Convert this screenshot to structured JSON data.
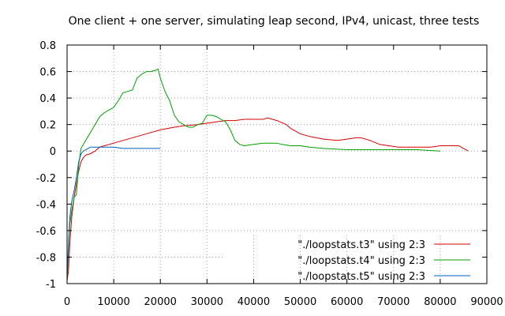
{
  "chart_data": {
    "type": "line",
    "title": "One client + one server, simulating leap second, IPv4, unicast, three tests",
    "xlabel": "",
    "ylabel": "",
    "xlim": [
      0,
      90000
    ],
    "ylim": [
      -1,
      0.8
    ],
    "xticks": [
      0,
      10000,
      20000,
      30000,
      40000,
      50000,
      60000,
      70000,
      80000,
      90000
    ],
    "xtick_labels": [
      "0",
      "10000",
      "20000",
      "30000",
      "40000",
      "50000",
      "60000",
      "70000",
      "80000",
      "90000"
    ],
    "yticks": [
      -1,
      -0.8,
      -0.6,
      -0.4,
      -0.2,
      0,
      0.2,
      0.4,
      0.6,
      0.8
    ],
    "ytick_labels": [
      "-1",
      "-0.8",
      "-0.6",
      "-0.4",
      "-0.2",
      "0",
      "0.2",
      "0.4",
      "0.6",
      "0.8"
    ],
    "grid": true,
    "legend_position": "bottom-right",
    "series": [
      {
        "name": "\"./loopstats.t3\" using 2:3",
        "color": "#d40000",
        "x": [
          0,
          300,
          600,
          1000,
          1500,
          2000,
          2500,
          3000,
          3500,
          4000,
          5000,
          6000,
          7000,
          8000,
          10000,
          12000,
          15000,
          18000,
          20000,
          23000,
          25000,
          28000,
          30000,
          32000,
          34000,
          36000,
          38000,
          40000,
          42000,
          43000,
          45000,
          47000,
          48000,
          50000,
          52000,
          55000,
          58000,
          60000,
          62000,
          63000,
          65000,
          67000,
          69000,
          71000,
          73000,
          75000,
          78000,
          80000,
          82000,
          84000,
          85000,
          86000
        ],
        "y": [
          -0.98,
          -0.9,
          -0.7,
          -0.5,
          -0.35,
          -0.25,
          -0.15,
          -0.08,
          -0.05,
          -0.03,
          -0.02,
          0.0,
          0.03,
          0.04,
          0.06,
          0.08,
          0.11,
          0.14,
          0.16,
          0.18,
          0.19,
          0.2,
          0.21,
          0.22,
          0.23,
          0.23,
          0.24,
          0.24,
          0.24,
          0.25,
          0.23,
          0.2,
          0.17,
          0.13,
          0.11,
          0.09,
          0.08,
          0.09,
          0.1,
          0.1,
          0.08,
          0.05,
          0.04,
          0.03,
          0.03,
          0.03,
          0.03,
          0.04,
          0.04,
          0.04,
          0.02,
          0.0
        ]
      },
      {
        "name": "\"./loopstats.t4\" using 2:3",
        "color": "#00a000",
        "x": [
          0,
          300,
          600,
          1000,
          1500,
          2000,
          2500,
          3000,
          4000,
          5000,
          6000,
          7000,
          8000,
          9000,
          10000,
          11000,
          12000,
          13000,
          14000,
          15000,
          16000,
          17000,
          18000,
          19000,
          19500,
          20000,
          21000,
          22000,
          23000,
          24000,
          25000,
          26000,
          27000,
          28000,
          29000,
          30000,
          31000,
          32000,
          33000,
          34000,
          35000,
          36000,
          37000,
          38000,
          40000,
          42000,
          44000,
          45000,
          46000,
          48000,
          50000,
          52000,
          55000,
          60000,
          65000,
          70000,
          75000,
          80000
        ],
        "y": [
          -0.98,
          -0.75,
          -0.55,
          -0.45,
          -0.35,
          -0.33,
          -0.1,
          0.02,
          0.08,
          0.14,
          0.2,
          0.26,
          0.29,
          0.31,
          0.33,
          0.38,
          0.44,
          0.45,
          0.46,
          0.55,
          0.58,
          0.6,
          0.6,
          0.61,
          0.62,
          0.55,
          0.45,
          0.38,
          0.27,
          0.22,
          0.2,
          0.18,
          0.18,
          0.2,
          0.21,
          0.27,
          0.27,
          0.26,
          0.24,
          0.22,
          0.16,
          0.08,
          0.05,
          0.04,
          0.05,
          0.06,
          0.06,
          0.06,
          0.05,
          0.04,
          0.04,
          0.03,
          0.02,
          0.01,
          0.01,
          0.01,
          0.01,
          0.0
        ]
      },
      {
        "name": "\"./loopstats.t5\" using 2:3",
        "color": "#0060c0",
        "x": [
          0,
          300,
          600,
          1000,
          1500,
          2000,
          2500,
          3000,
          3500,
          4000,
          4500,
          5000,
          6000,
          7000,
          8000,
          9000,
          10000,
          12000,
          14000,
          16000,
          18000,
          20000
        ],
        "y": [
          -0.95,
          -0.7,
          -0.5,
          -0.38,
          -0.3,
          -0.2,
          -0.08,
          -0.02,
          0.0,
          0.01,
          0.02,
          0.03,
          0.03,
          0.03,
          0.03,
          0.03,
          0.03,
          0.02,
          0.02,
          0.02,
          0.02,
          0.02
        ]
      }
    ]
  }
}
